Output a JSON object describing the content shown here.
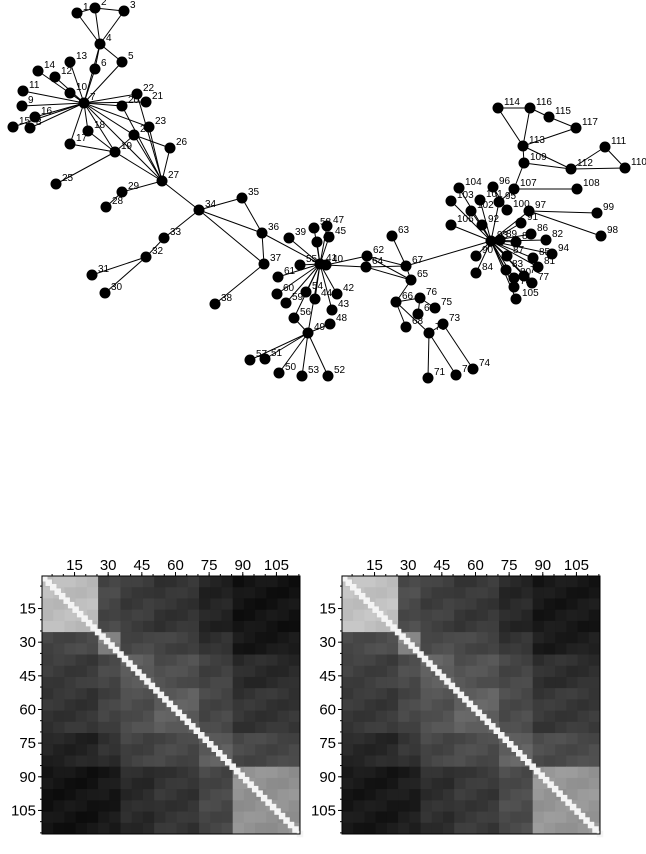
{
  "graph": {
    "node_ids": [
      1,
      2,
      3,
      4,
      5,
      6,
      7,
      8,
      9,
      10,
      11,
      12,
      13,
      14,
      15,
      16,
      17,
      18,
      19,
      20,
      21,
      22,
      23,
      24,
      25,
      26,
      27,
      28,
      29,
      30,
      31,
      32,
      33,
      34,
      35,
      36,
      37,
      38,
      39,
      40,
      41,
      42,
      43,
      44,
      45,
      46,
      47,
      48,
      49,
      50,
      51,
      52,
      53,
      54,
      55,
      56,
      57,
      58,
      59,
      60,
      61,
      62,
      63,
      64,
      65,
      66,
      67,
      68,
      69,
      70,
      71,
      72,
      73,
      74,
      75,
      76,
      77,
      78,
      79,
      80,
      81,
      82,
      83,
      84,
      85,
      86,
      87,
      88,
      89,
      90,
      91,
      92,
      93,
      94,
      95,
      96,
      97,
      98,
      99,
      100,
      101,
      102,
      103,
      104,
      105,
      106,
      107,
      108,
      109,
      110,
      111,
      112,
      113,
      114,
      115,
      116,
      117
    ]
  },
  "heatmaps": [
    {
      "name": "left",
      "tick_labels": [
        "15",
        "30",
        "45",
        "60",
        "75",
        "90",
        "105"
      ],
      "n": 115
    },
    {
      "name": "right",
      "tick_labels": [
        "15",
        "30",
        "45",
        "60",
        "75",
        "90",
        "105"
      ],
      "n": 115
    }
  ]
}
